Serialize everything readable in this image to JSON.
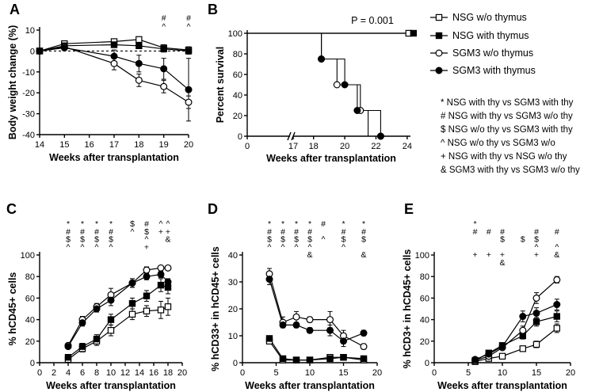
{
  "legend": [
    {
      "label": "NSG w/o thymus",
      "marker": "square-open-icon"
    },
    {
      "label": "NSG with thymus",
      "marker": "square-filled-icon"
    },
    {
      "label": "SGM3 w/o thymus",
      "marker": "circle-open-icon"
    },
    {
      "label": "SGM3 with thymus",
      "marker": "circle-filled-icon"
    }
  ],
  "significance_key": [
    "* NSG with thy vs SGM3 with thy",
    "# NSG with thy vs SGM3 w/o thy",
    "$ NSG w/o thy vs SGM3 with thy",
    "^ NSG w/o thy vs SGM3 w/o",
    "+ NSG with thy vs NSG w/o thy",
    "& SGM3 with thy vs SGM3 w/o thy"
  ],
  "chart_data": [
    {
      "panel": "A",
      "type": "line",
      "title": "",
      "xlabel": "Weeks after transplantation",
      "ylabel": "Body weight change (%)",
      "xlim": [
        14,
        20
      ],
      "ylim": [
        -40,
        10
      ],
      "xticks": [
        14,
        15,
        16,
        17,
        18,
        19,
        20
      ],
      "yticks": [
        10,
        0,
        -10,
        -20,
        -30,
        -40
      ],
      "tick_labels_x": [
        "14",
        "15",
        "16",
        "17",
        "18",
        "19",
        "20"
      ],
      "tick_labels_y": [
        "10",
        "0",
        "-10",
        "-20",
        "-30",
        "-40"
      ],
      "reference_line": 0,
      "series": [
        {
          "name": "NSG w/o thymus",
          "x": [
            14,
            15,
            17,
            18,
            19,
            20
          ],
          "y": [
            0,
            3.5,
            4.5,
            5.5,
            1.5,
            0.5
          ],
          "err": [
            0,
            1,
            1,
            1,
            1.5,
            1.5
          ]
        },
        {
          "name": "NSG with thymus",
          "x": [
            14,
            15,
            17,
            18,
            19,
            20
          ],
          "y": [
            0,
            2.5,
            3,
            2.5,
            1,
            0
          ],
          "err": [
            0,
            1,
            1,
            1,
            1.5,
            1.5
          ]
        },
        {
          "name": "SGM3 w/o thymus",
          "x": [
            14,
            15,
            17,
            18,
            19,
            20
          ],
          "y": [
            0,
            2,
            -6,
            -14,
            -17,
            -24.5
          ],
          "err": [
            0,
            1,
            3,
            3,
            3,
            3
          ]
        },
        {
          "name": "SGM3 with thymus",
          "x": [
            14,
            15,
            17,
            18,
            19,
            20
          ],
          "y": [
            0,
            1.5,
            -2.5,
            -6,
            -8.5,
            -18.5
          ],
          "err": [
            0,
            1,
            3,
            4,
            5,
            15
          ]
        }
      ],
      "annotations": [
        {
          "x": 19,
          "lines": [
            "#",
            "^"
          ]
        },
        {
          "x": 20,
          "lines": [
            "#",
            "^"
          ]
        }
      ]
    },
    {
      "panel": "B",
      "type": "line",
      "title": "",
      "xlabel": "Weeks after transplantation",
      "ylabel": "Percent survival",
      "xlim": [
        0,
        25
      ],
      "ylim": [
        0,
        100
      ],
      "xticks": [
        0,
        17,
        18,
        20,
        22,
        24
      ],
      "yticks": [
        0,
        20,
        40,
        60,
        80,
        100
      ],
      "tick_labels_x": [
        "0",
        "17",
        "18",
        "20",
        "22",
        "24"
      ],
      "tick_labels_y": [
        "0",
        "20",
        "40",
        "60",
        "80",
        "100"
      ],
      "axis_break": true,
      "annotation": "P = 0.001",
      "series": [
        {
          "name": "NSG w/o thymus",
          "steps": [
            [
              0,
              100
            ],
            [
              24.3,
              100
            ]
          ]
        },
        {
          "name": "NSG with thymus",
          "steps": [
            [
              0,
              100
            ],
            [
              24.3,
              100
            ]
          ]
        },
        {
          "name": "SGM3 w/o thymus",
          "steps": [
            [
              0,
              100
            ],
            [
              18.5,
              100
            ],
            [
              18.5,
              75
            ],
            [
              19.5,
              75
            ],
            [
              19.5,
              50
            ],
            [
              21,
              50
            ],
            [
              21,
              25
            ],
            [
              21.5,
              25
            ],
            [
              21.5,
              0
            ],
            [
              22.3,
              0
            ]
          ]
        },
        {
          "name": "SGM3 with thymus",
          "steps": [
            [
              0,
              100
            ],
            [
              18.5,
              100
            ],
            [
              18.5,
              75
            ],
            [
              20,
              75
            ],
            [
              20,
              50
            ],
            [
              20.8,
              50
            ],
            [
              20.8,
              25
            ],
            [
              22.3,
              25
            ],
            [
              22.3,
              0
            ]
          ]
        }
      ]
    },
    {
      "panel": "C",
      "type": "line",
      "title": "",
      "xlabel": "Weeks after transplantation",
      "ylabel": "% hCD45+ cells",
      "xlim": [
        0,
        20
      ],
      "ylim": [
        0,
        100
      ],
      "xticks": [
        0,
        2,
        4,
        6,
        8,
        10,
        12,
        14,
        16,
        18,
        20
      ],
      "yticks": [
        0,
        20,
        40,
        60,
        80,
        100
      ],
      "tick_labels_x": [
        "0",
        "2",
        "4",
        "6",
        "8",
        "10",
        "12",
        "14",
        "16",
        "18",
        "20"
      ],
      "tick_labels_y": [
        "0",
        "20",
        "40",
        "60",
        "80",
        "100"
      ],
      "series": [
        {
          "name": "NSG w/o thymus",
          "x": [
            4,
            6,
            8,
            10,
            13,
            15,
            17,
            18
          ],
          "y": [
            3,
            13,
            20,
            30,
            45,
            48,
            49,
            52
          ],
          "err": [
            1,
            3,
            4,
            5,
            5,
            5,
            8,
            8
          ]
        },
        {
          "name": "NSG with thymus",
          "x": [
            4,
            6,
            8,
            10,
            13,
            15,
            17,
            18
          ],
          "y": [
            5,
            15,
            22,
            40,
            55,
            62,
            72,
            70
          ],
          "err": [
            1,
            3,
            4,
            5,
            5,
            5,
            6,
            6
          ]
        },
        {
          "name": "SGM3 w/o thymus",
          "x": [
            4,
            6,
            8,
            10,
            13,
            15,
            17,
            18
          ],
          "y": [
            16,
            40,
            52,
            63,
            74,
            86,
            88,
            88
          ],
          "err": [
            2,
            3,
            3,
            6,
            4,
            3,
            2,
            2
          ]
        },
        {
          "name": "SGM3 with thymus",
          "x": [
            4,
            6,
            8,
            10,
            13,
            15,
            17,
            18
          ],
          "y": [
            15,
            37,
            50,
            58,
            74,
            80,
            82,
            75
          ],
          "err": [
            2,
            3,
            3,
            5,
            4,
            3,
            3,
            3
          ]
        }
      ],
      "annotations": [
        {
          "x": 4,
          "lines": [
            "*",
            "#",
            "$",
            "^"
          ]
        },
        {
          "x": 6,
          "lines": [
            "*",
            "#",
            "$",
            "^"
          ]
        },
        {
          "x": 8,
          "lines": [
            "*",
            "#",
            "$",
            "^"
          ]
        },
        {
          "x": 10,
          "lines": [
            "*",
            "#",
            "$",
            "^"
          ]
        },
        {
          "x": 13,
          "lines": [
            "$",
            "^"
          ]
        },
        {
          "x": 15,
          "lines": [
            "#",
            "$",
            "^",
            "+"
          ]
        },
        {
          "x": 17,
          "lines": [
            "^",
            "+"
          ]
        },
        {
          "x": 18,
          "lines": [
            "^",
            "+",
            "&"
          ]
        }
      ]
    },
    {
      "panel": "D",
      "type": "line",
      "title": "",
      "xlabel": "Weeks after transplantation",
      "ylabel": "% hCD33+ in hCD45+ cells",
      "xlim": [
        0,
        20
      ],
      "ylim": [
        0,
        40
      ],
      "xticks": [
        0,
        5,
        10,
        15,
        20
      ],
      "yticks": [
        0,
        10,
        20,
        30,
        40
      ],
      "tick_labels_x": [
        "0",
        "5",
        "10",
        "15",
        "20"
      ],
      "tick_labels_y": [
        "0",
        "10",
        "20",
        "30",
        "40"
      ],
      "series": [
        {
          "name": "NSG w/o thymus",
          "x": [
            4,
            6,
            8,
            10,
            13,
            15,
            18
          ],
          "y": [
            8,
            1,
            1,
            1,
            2,
            2,
            1
          ],
          "err": [
            1,
            0.5,
            0.5,
            0.5,
            1,
            1,
            0.5
          ]
        },
        {
          "name": "NSG with thymus",
          "x": [
            4,
            6,
            8,
            10,
            13,
            15,
            18
          ],
          "y": [
            9,
            1.5,
            1,
            1,
            1.5,
            2,
            1.5
          ],
          "err": [
            1,
            0.5,
            0.5,
            0.5,
            1,
            1,
            0.5
          ]
        },
        {
          "name": "SGM3 w/o thymus",
          "x": [
            4,
            6,
            8,
            10,
            13,
            15,
            18
          ],
          "y": [
            33,
            15,
            17,
            16,
            16,
            10,
            6
          ],
          "err": [
            2,
            2,
            2,
            1,
            3,
            2,
            1
          ]
        },
        {
          "name": "SGM3 with thymus",
          "x": [
            4,
            6,
            8,
            10,
            13,
            15,
            18
          ],
          "y": [
            31,
            14,
            14,
            12,
            12,
            8,
            11
          ],
          "err": [
            2,
            1,
            1,
            1,
            2,
            2,
            1
          ]
        }
      ],
      "annotations": [
        {
          "x": 4,
          "lines": [
            "*",
            "#",
            "$",
            "^"
          ]
        },
        {
          "x": 6,
          "lines": [
            "*",
            "#",
            "$",
            "^"
          ]
        },
        {
          "x": 8,
          "lines": [
            "*",
            "#",
            "$",
            "^"
          ]
        },
        {
          "x": 10,
          "lines": [
            "*",
            "#",
            "$",
            "^",
            "&"
          ]
        },
        {
          "x": 12,
          "lines": [
            "#",
            "",
            "^"
          ]
        },
        {
          "x": 15,
          "lines": [
            "*",
            "#",
            "$",
            "^"
          ]
        },
        {
          "x": 18,
          "lines": [
            "*",
            "#",
            "$",
            "",
            "&"
          ]
        }
      ]
    },
    {
      "panel": "E",
      "type": "line",
      "title": "",
      "xlabel": "Weeks after transplantation",
      "ylabel": "% hCD3+ in hCD45+ cells",
      "xlim": [
        0,
        20
      ],
      "ylim": [
        0,
        100
      ],
      "xticks": [
        0,
        5,
        10,
        15,
        20
      ],
      "yticks": [
        0,
        20,
        40,
        60,
        80,
        100
      ],
      "tick_labels_x": [
        "0",
        "5",
        "10",
        "15",
        "20"
      ],
      "tick_labels_y": [
        "0",
        "20",
        "40",
        "60",
        "80",
        "100"
      ],
      "series": [
        {
          "name": "NSG w/o thymus",
          "x": [
            6,
            8,
            10,
            13,
            15,
            18
          ],
          "y": [
            1,
            4,
            6,
            13,
            17,
            32
          ],
          "err": [
            0.5,
            1,
            1,
            2,
            3,
            4
          ]
        },
        {
          "name": "NSG with thymus",
          "x": [
            6,
            8,
            10,
            13,
            15,
            18
          ],
          "y": [
            2,
            9,
            16,
            25,
            38,
            43
          ],
          "err": [
            0.5,
            2,
            2,
            3,
            4,
            5
          ]
        },
        {
          "name": "SGM3 w/o thymus",
          "x": [
            6,
            8,
            10,
            13,
            15,
            18
          ],
          "y": [
            2,
            6,
            14,
            30,
            60,
            77
          ],
          "err": [
            0.5,
            1,
            2,
            4,
            5,
            3
          ]
        },
        {
          "name": "SGM3 with thymus",
          "x": [
            6,
            8,
            10,
            13,
            15,
            18
          ],
          "y": [
            3,
            8,
            15,
            43,
            46,
            54
          ],
          "err": [
            0.5,
            2,
            2,
            5,
            5,
            5
          ]
        }
      ],
      "annotations": [
        {
          "x": 6,
          "lines": [
            "*",
            "#",
            "",
            "",
            "+"
          ]
        },
        {
          "x": 8,
          "lines": [
            "",
            "#",
            "",
            "",
            "+"
          ]
        },
        {
          "x": 10,
          "lines": [
            "",
            "#",
            "$",
            "",
            "+",
            "&"
          ]
        },
        {
          "x": 13,
          "lines": [
            "",
            "",
            "$",
            "",
            ""
          ]
        },
        {
          "x": 15,
          "lines": [
            "",
            "#",
            "$",
            "^",
            "+"
          ]
        },
        {
          "x": 18,
          "lines": [
            "",
            "#",
            "",
            "^",
            "&"
          ]
        }
      ]
    }
  ]
}
